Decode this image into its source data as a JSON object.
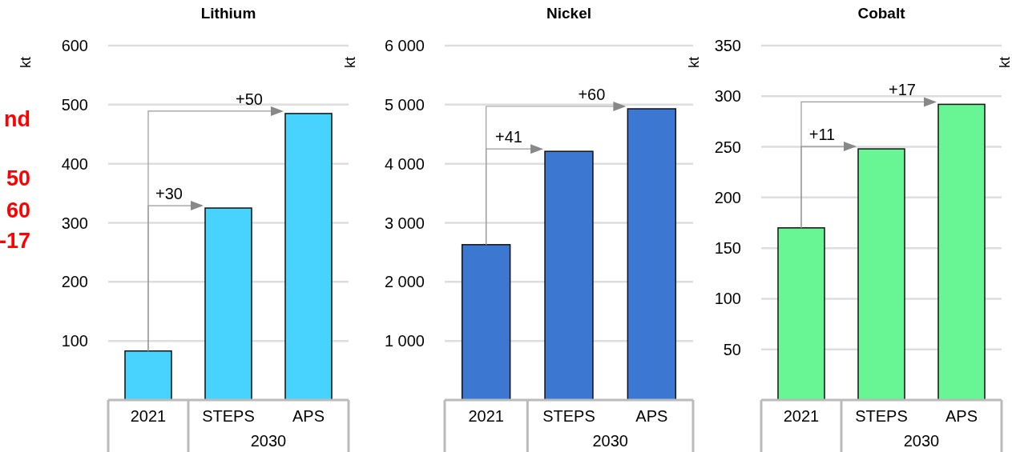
{
  "chart_data": [
    {
      "type": "bar",
      "title": "Lithium",
      "ylabel": "kt",
      "categories": [
        "2021",
        "STEPS",
        "APS"
      ],
      "values": [
        83,
        325,
        485
      ],
      "color": "#48d3ff",
      "ylim": [
        0,
        600
      ],
      "yticks": [
        100,
        200,
        300,
        400,
        500,
        600
      ],
      "grid": "y",
      "annotations": [
        "2030",
        {
          "text": "+30",
          "x": "STEPS",
          "y": 325
        },
        {
          "text": "+50",
          "x": "APS",
          "y": 485
        },
        "nd",
        "50",
        "60",
        "-17"
      ]
    },
    {
      "type": "bar",
      "title": "Nickel",
      "ylabel": "kt",
      "categories": [
        "2021",
        "STEPS",
        "APS"
      ],
      "values": [
        2630,
        4210,
        4930
      ],
      "color": "#3c78d2",
      "ylim": [
        0,
        6000
      ],
      "yticks": [
        {
          "value": 1000,
          "label": "1 000"
        },
        {
          "value": 2000,
          "label": "2 000"
        },
        {
          "value": 3000,
          "label": "3 000"
        },
        {
          "value": 4000,
          "label": "4 000"
        },
        {
          "value": 5000,
          "label": "5 000"
        },
        {
          "value": 6000,
          "label": "6 000"
        }
      ],
      "grid": "y",
      "annotations": [
        "2030",
        {
          "text": "+41",
          "x": "STEPS",
          "y": 4210
        },
        {
          "text": "+60",
          "x": "APS",
          "y": 4930
        }
      ]
    },
    {
      "type": "bar",
      "title": "Cobalt",
      "ylabel": "kt",
      "categories": [
        "2021",
        "STEPS",
        "APS"
      ],
      "values": [
        170,
        248,
        292
      ],
      "color": "#68f593",
      "ylim": [
        0,
        350
      ],
      "yticks": [
        50,
        100,
        150,
        200,
        250,
        300,
        350
      ],
      "grid": "y",
      "annotations": [
        "2030",
        {
          "text": "+11",
          "x": "STEPS",
          "y": 248
        },
        {
          "text": "+17",
          "x": "APS",
          "y": 292
        },
        "kt"
      ]
    }
  ]
}
